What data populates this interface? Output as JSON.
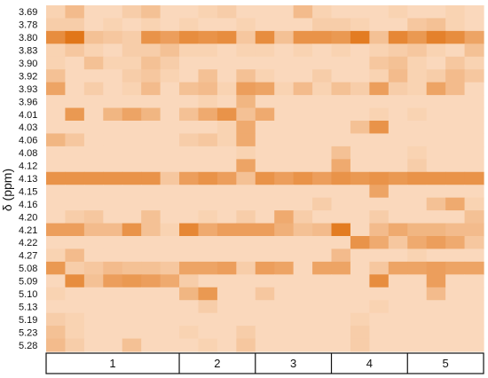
{
  "chart_data": {
    "type": "heatmap",
    "ylabel": "δ (ppm)",
    "row_labels": [
      "3.69",
      "3.78",
      "3.80",
      "3.83",
      "3.90",
      "3.92",
      "3.93",
      "3.96",
      "4.01",
      "4.03",
      "4.06",
      "4.08",
      "4.12",
      "4.13",
      "4.15",
      "4.16",
      "4.20",
      "4.21",
      "4.22",
      "4.27",
      "5.08",
      "5.09",
      "5.10",
      "5.13",
      "5.19",
      "5.23",
      "5.28"
    ],
    "groups": [
      {
        "label": "1",
        "columns": 7
      },
      {
        "label": "2",
        "columns": 4
      },
      {
        "label": "3",
        "columns": 4
      },
      {
        "label": "4",
        "columns": 4
      },
      {
        "label": "5",
        "columns": 4
      }
    ],
    "color_scale": {
      "low": "#FDE4CF",
      "high": "#E0700F"
    },
    "grid": false,
    "values": [
      [
        0.15,
        0.35,
        0.1,
        0.1,
        0.2,
        0.3,
        0.1,
        0.1,
        0.15,
        0.2,
        0.1,
        0.1,
        0.1,
        0.35,
        0.15,
        0.1,
        0.1,
        0.1,
        0.15,
        0.1,
        0.1,
        0.15,
        0.1
      ],
      [
        0.2,
        0.2,
        0.1,
        0.15,
        0.1,
        0.15,
        0.1,
        0.15,
        0.1,
        0.1,
        0.15,
        0.1,
        0.1,
        0.1,
        0.2,
        0.2,
        0.15,
        0.1,
        0.1,
        0.25,
        0.3,
        0.15,
        0.1
      ],
      [
        0.75,
        0.95,
        0.3,
        0.25,
        0.2,
        0.7,
        0.6,
        0.75,
        0.7,
        0.75,
        0.25,
        0.75,
        0.3,
        0.7,
        0.7,
        0.65,
        0.9,
        0.3,
        0.8,
        0.65,
        0.85,
        0.75,
        0.55
      ],
      [
        0.15,
        0.25,
        0.15,
        0.1,
        0.2,
        0.2,
        0.3,
        0.15,
        0.15,
        0.1,
        0.15,
        0.15,
        0.1,
        0.15,
        0.1,
        0.15,
        0.1,
        0.15,
        0.2,
        0.25,
        0.15,
        0.1,
        0.3
      ],
      [
        0.15,
        0.1,
        0.3,
        0.15,
        0.15,
        0.3,
        0.2,
        0.1,
        0.1,
        0.1,
        0.1,
        0.1,
        0.1,
        0.1,
        0.1,
        0.1,
        0.1,
        0.25,
        0.3,
        0.15,
        0.1,
        0.25,
        0.15
      ],
      [
        0.3,
        0.1,
        0.1,
        0.1,
        0.2,
        0.25,
        0.15,
        0.1,
        0.3,
        0.1,
        0.3,
        0.15,
        0.1,
        0.1,
        0.2,
        0.1,
        0.1,
        0.15,
        0.35,
        0.15,
        0.2,
        0.35,
        0.25
      ],
      [
        0.55,
        0.1,
        0.2,
        0.1,
        0.15,
        0.35,
        0.1,
        0.3,
        0.35,
        0.15,
        0.6,
        0.55,
        0.15,
        0.35,
        0.15,
        0.3,
        0.2,
        0.6,
        0.2,
        0.15,
        0.55,
        0.35,
        0.1
      ],
      [
        0.1,
        0.1,
        0.1,
        0.1,
        0.1,
        0.1,
        0.1,
        0.1,
        0.15,
        0.1,
        0.4,
        0.1,
        0.1,
        0.1,
        0.1,
        0.1,
        0.1,
        0.1,
        0.1,
        0.1,
        0.1,
        0.1,
        0.1
      ],
      [
        0.1,
        0.65,
        0.1,
        0.4,
        0.55,
        0.4,
        0.1,
        0.3,
        0.5,
        0.7,
        0.3,
        0.5,
        0.1,
        0.1,
        0.1,
        0.1,
        0.1,
        0.15,
        0.1,
        0.15,
        0.1,
        0.1,
        0.1
      ],
      [
        0.1,
        0.1,
        0.1,
        0.1,
        0.1,
        0.1,
        0.1,
        0.1,
        0.1,
        0.15,
        0.5,
        0.1,
        0.1,
        0.1,
        0.1,
        0.1,
        0.3,
        0.7,
        0.1,
        0.1,
        0.1,
        0.1,
        0.1
      ],
      [
        0.4,
        0.25,
        0.1,
        0.1,
        0.1,
        0.1,
        0.1,
        0.2,
        0.25,
        0.15,
        0.5,
        0.1,
        0.1,
        0.1,
        0.1,
        0.1,
        0.1,
        0.1,
        0.1,
        0.1,
        0.1,
        0.1,
        0.1
      ],
      [
        0.1,
        0.1,
        0.1,
        0.1,
        0.1,
        0.1,
        0.1,
        0.1,
        0.1,
        0.1,
        0.15,
        0.1,
        0.1,
        0.1,
        0.1,
        0.3,
        0.1,
        0.1,
        0.1,
        0.15,
        0.1,
        0.1,
        0.1
      ],
      [
        0.1,
        0.1,
        0.1,
        0.1,
        0.1,
        0.1,
        0.1,
        0.1,
        0.1,
        0.1,
        0.55,
        0.1,
        0.1,
        0.1,
        0.1,
        0.5,
        0.1,
        0.1,
        0.1,
        0.2,
        0.1,
        0.1,
        0.1
      ],
      [
        0.7,
        0.7,
        0.7,
        0.7,
        0.7,
        0.7,
        0.25,
        0.6,
        0.7,
        0.6,
        0.3,
        0.7,
        0.6,
        0.7,
        0.6,
        0.7,
        0.65,
        0.7,
        0.65,
        0.7,
        0.7,
        0.7,
        0.7
      ],
      [
        0.1,
        0.1,
        0.1,
        0.1,
        0.1,
        0.1,
        0.1,
        0.1,
        0.1,
        0.1,
        0.1,
        0.1,
        0.1,
        0.1,
        0.1,
        0.1,
        0.1,
        0.55,
        0.1,
        0.1,
        0.1,
        0.1,
        0.1
      ],
      [
        0.1,
        0.1,
        0.1,
        0.1,
        0.1,
        0.1,
        0.1,
        0.1,
        0.1,
        0.1,
        0.1,
        0.1,
        0.1,
        0.1,
        0.2,
        0.1,
        0.1,
        0.1,
        0.1,
        0.1,
        0.3,
        0.5,
        0.15
      ],
      [
        0.1,
        0.2,
        0.25,
        0.1,
        0.1,
        0.3,
        0.1,
        0.1,
        0.15,
        0.1,
        0.2,
        0.1,
        0.5,
        0.2,
        0.1,
        0.1,
        0.1,
        0.2,
        0.1,
        0.1,
        0.1,
        0.1,
        0.3
      ],
      [
        0.6,
        0.6,
        0.35,
        0.35,
        0.7,
        0.3,
        0.15,
        0.8,
        0.5,
        0.6,
        0.6,
        0.6,
        0.45,
        0.3,
        0.35,
        0.9,
        0.1,
        0.35,
        0.5,
        0.4,
        0.4,
        0.35,
        0.35
      ],
      [
        0.1,
        0.1,
        0.1,
        0.1,
        0.1,
        0.1,
        0.1,
        0.1,
        0.1,
        0.1,
        0.1,
        0.1,
        0.1,
        0.1,
        0.1,
        0.1,
        0.7,
        0.5,
        0.25,
        0.5,
        0.6,
        0.5,
        0.25
      ],
      [
        0.15,
        0.35,
        0.1,
        0.1,
        0.1,
        0.1,
        0.1,
        0.1,
        0.1,
        0.1,
        0.1,
        0.1,
        0.1,
        0.1,
        0.1,
        0.35,
        0.1,
        0.1,
        0.1,
        0.15,
        0.1,
        0.1,
        0.1
      ],
      [
        0.65,
        0.2,
        0.25,
        0.35,
        0.3,
        0.3,
        0.25,
        0.55,
        0.55,
        0.6,
        0.2,
        0.6,
        0.55,
        0.1,
        0.55,
        0.55,
        0.1,
        0.25,
        0.55,
        0.55,
        0.6,
        0.55,
        0.55
      ],
      [
        0.1,
        0.75,
        0.3,
        0.6,
        0.65,
        0.6,
        0.5,
        0.2,
        0.1,
        0.1,
        0.1,
        0.1,
        0.1,
        0.1,
        0.1,
        0.1,
        0.1,
        0.75,
        0.1,
        0.1,
        0.6,
        0.1,
        0.1
      ],
      [
        0.15,
        0.1,
        0.1,
        0.1,
        0.1,
        0.1,
        0.1,
        0.4,
        0.65,
        0.1,
        0.1,
        0.25,
        0.1,
        0.1,
        0.1,
        0.1,
        0.1,
        0.1,
        0.1,
        0.1,
        0.35,
        0.1,
        0.1
      ],
      [
        0.1,
        0.1,
        0.1,
        0.1,
        0.1,
        0.1,
        0.1,
        0.1,
        0.2,
        0.1,
        0.1,
        0.1,
        0.1,
        0.1,
        0.1,
        0.1,
        0.1,
        0.15,
        0.1,
        0.1,
        0.1,
        0.1,
        0.1
      ],
      [
        0.2,
        0.15,
        0.1,
        0.1,
        0.1,
        0.1,
        0.1,
        0.1,
        0.1,
        0.1,
        0.1,
        0.1,
        0.1,
        0.1,
        0.1,
        0.1,
        0.15,
        0.1,
        0.1,
        0.1,
        0.1,
        0.1,
        0.1
      ],
      [
        0.3,
        0.15,
        0.1,
        0.1,
        0.1,
        0.1,
        0.1,
        0.15,
        0.1,
        0.1,
        0.2,
        0.1,
        0.1,
        0.1,
        0.1,
        0.1,
        0.2,
        0.1,
        0.1,
        0.1,
        0.1,
        0.1,
        0.1
      ],
      [
        0.35,
        0.2,
        0.1,
        0.1,
        0.3,
        0.1,
        0.1,
        0.1,
        0.15,
        0.1,
        0.25,
        0.1,
        0.1,
        0.1,
        0.1,
        0.1,
        0.2,
        0.1,
        0.1,
        0.1,
        0.1,
        0.1,
        0.1
      ]
    ]
  }
}
